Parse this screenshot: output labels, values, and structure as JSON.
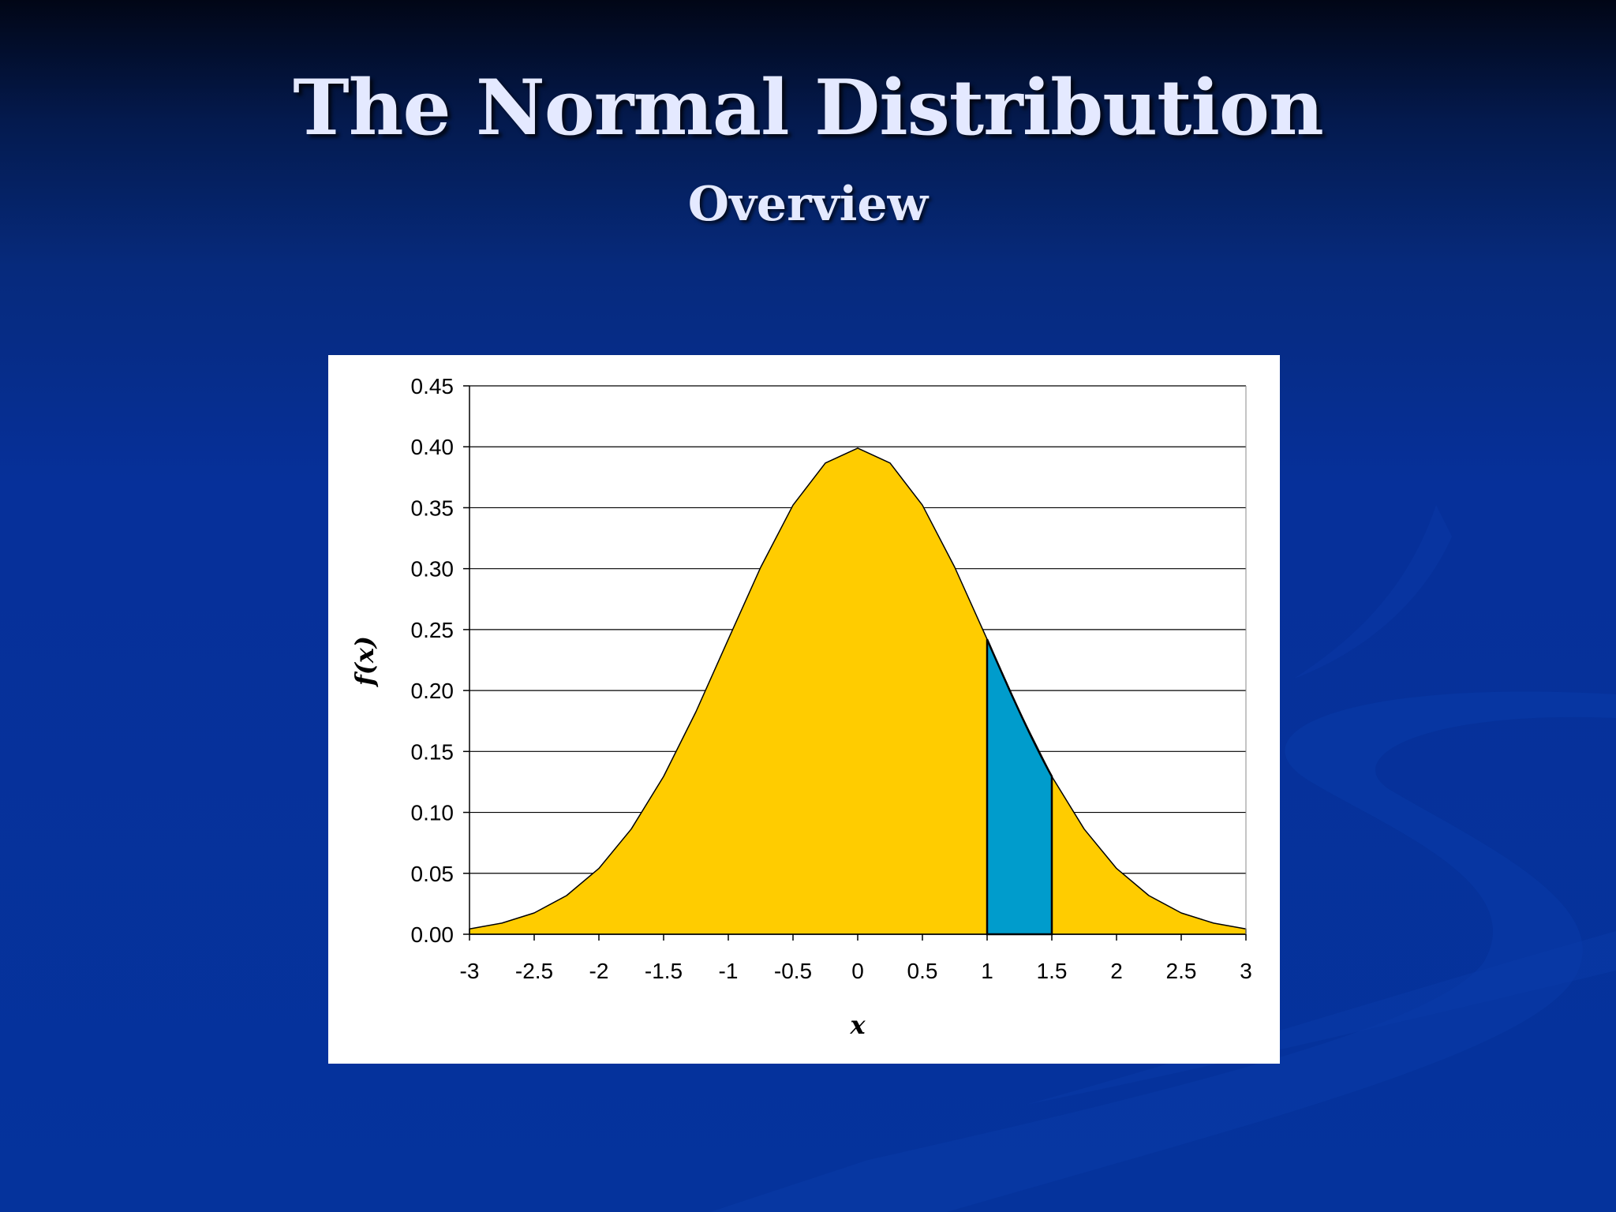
{
  "slide": {
    "title": "The Normal Distribution",
    "subtitle": "Overview"
  },
  "colors": {
    "background": "#05339c",
    "curve_fill": "#ffcc00",
    "highlight_fill": "#009ccc",
    "panel": "#ffffff"
  },
  "chart_data": {
    "type": "area",
    "title": "",
    "xlabel": "x",
    "ylabel": "f(x)",
    "xlim": [
      -3,
      3
    ],
    "ylim": [
      0,
      0.45
    ],
    "grid": "horizontal",
    "x_ticks": [
      "-3",
      "-2.5",
      "-2",
      "-1.5",
      "-1",
      "-0.5",
      "0",
      "0.5",
      "1",
      "1.5",
      "2",
      "2.5",
      "3"
    ],
    "y_ticks": [
      "0.00",
      "0.05",
      "0.10",
      "0.15",
      "0.20",
      "0.25",
      "0.30",
      "0.35",
      "0.40",
      "0.45"
    ],
    "x": [
      -3,
      -2.75,
      -2.5,
      -2.25,
      -2,
      -1.75,
      -1.5,
      -1.25,
      -1,
      -0.75,
      -0.5,
      -0.25,
      0,
      0.25,
      0.5,
      0.75,
      1,
      1.25,
      1.5,
      1.75,
      2,
      2.25,
      2.5,
      2.75,
      3
    ],
    "y": [
      0.0044,
      0.0091,
      0.0175,
      0.0317,
      0.054,
      0.0863,
      0.1295,
      0.1826,
      0.242,
      0.3011,
      0.3521,
      0.3867,
      0.3989,
      0.3867,
      0.3521,
      0.3011,
      0.242,
      0.1826,
      0.1295,
      0.0863,
      0.054,
      0.0317,
      0.0175,
      0.0091,
      0.0044
    ],
    "shaded_interval": [
      1,
      1.5
    ]
  }
}
